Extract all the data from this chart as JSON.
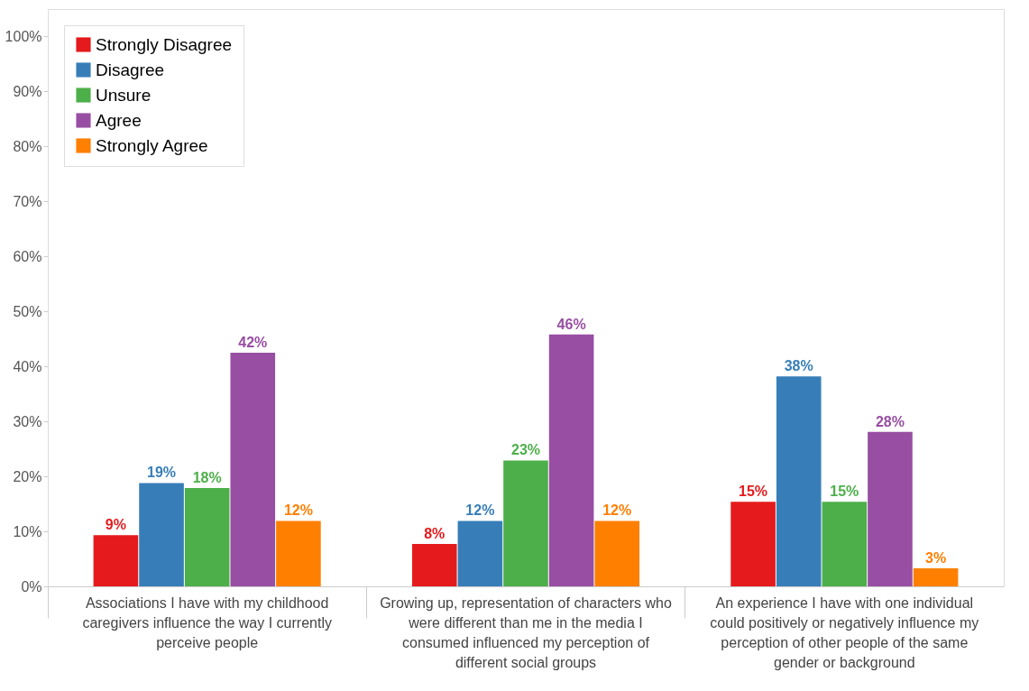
{
  "chart_data": {
    "type": "bar",
    "categories": [
      "Associations I have with my childhood caregivers influence the way I currently perceive people",
      "Growing up, representation of characters who were different than me in the media I consumed influenced my perception of different social groups",
      "An experience I have with one individual could positively or negatively influence my perception of other people of the same gender or background"
    ],
    "series": [
      {
        "name": "Strongly Disagree",
        "color": "#e41a1c",
        "values": [
          9.3,
          7.7,
          15.4
        ],
        "value_labels": [
          "9%",
          "8%",
          "15%"
        ]
      },
      {
        "name": "Disagree",
        "color": "#377eb8",
        "values": [
          18.8,
          11.9,
          38.2
        ],
        "value_labels": [
          "19%",
          "12%",
          "38%"
        ]
      },
      {
        "name": "Unsure",
        "color": "#4daf4a",
        "values": [
          17.9,
          22.9,
          15.4
        ],
        "value_labels": [
          "18%",
          "23%",
          "15%"
        ]
      },
      {
        "name": "Agree",
        "color": "#984ea3",
        "values": [
          42.5,
          45.8,
          28.1
        ],
        "value_labels": [
          "42%",
          "46%",
          "28%"
        ]
      },
      {
        "name": "Strongly Agree",
        "color": "#ff7f00",
        "values": [
          11.9,
          11.9,
          3.3
        ],
        "value_labels": [
          "12%",
          "12%",
          "3%"
        ]
      }
    ],
    "ylim": [
      0,
      105
    ],
    "yticks": [
      {
        "value": 0,
        "label": "0%"
      },
      {
        "value": 10,
        "label": "10%"
      },
      {
        "value": 20,
        "label": "20%"
      },
      {
        "value": 30,
        "label": "30%"
      },
      {
        "value": 40,
        "label": "40%"
      },
      {
        "value": 50,
        "label": "50%"
      },
      {
        "value": 60,
        "label": "60%"
      },
      {
        "value": 70,
        "label": "70%"
      },
      {
        "value": 80,
        "label": "80%"
      },
      {
        "value": 90,
        "label": "90%"
      },
      {
        "value": 100,
        "label": "100%"
      }
    ],
    "legend": "top left",
    "grid": false
  }
}
